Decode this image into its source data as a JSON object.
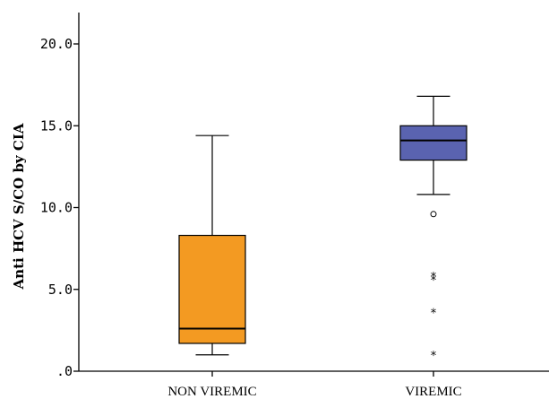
{
  "chart_data": {
    "type": "boxplot",
    "title": "",
    "xlabel": "",
    "ylabel": "Anti HCV S/CO by CIA",
    "ylim": [
      0,
      22
    ],
    "yticks": [
      ".0",
      "5.0",
      "10.0",
      "15.0",
      "20.0"
    ],
    "ytick_values": [
      0,
      5,
      10,
      15,
      20
    ],
    "categories": [
      "NON VIREMIC",
      "VIREMIC"
    ],
    "boxes": [
      {
        "category": "NON VIREMIC",
        "color": "#F39A22",
        "whisker_low": 1.0,
        "q1": 1.7,
        "median": 2.6,
        "q3": 8.3,
        "whisker_high": 14.4,
        "outliers": [],
        "extremes": []
      },
      {
        "category": "VIREMIC",
        "color": "#5A63B0",
        "whisker_low": 10.8,
        "q1": 12.9,
        "median": 14.1,
        "q3": 15.0,
        "whisker_high": 16.8,
        "outliers": [
          9.6
        ],
        "extremes": [
          5.8,
          5.6,
          3.6,
          1.0
        ]
      }
    ],
    "grid": false,
    "legend": "none"
  }
}
